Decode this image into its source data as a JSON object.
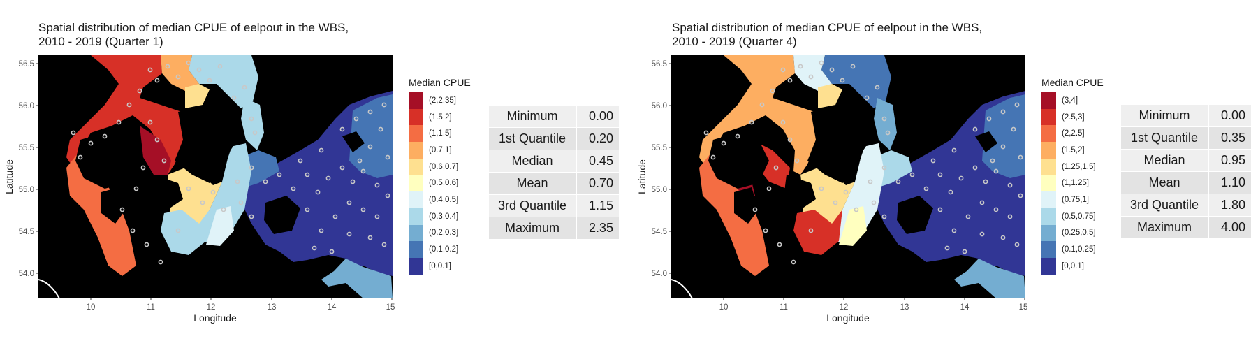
{
  "panels": [
    {
      "id": "q1",
      "title_line1": "Spatial distribution of median CPUE of eelpout in the WBS,",
      "title_line2": "2010 - 2019 (Quarter 1)",
      "xlabel": "Longitude",
      "ylabel": "Latitude",
      "x_ticks": [
        "10",
        "11",
        "12",
        "13",
        "14",
        "15"
      ],
      "y_ticks": [
        "56.5",
        "56.0",
        "55.5",
        "55.0",
        "54.5",
        "54.0"
      ],
      "legend_title": "Median CPUE",
      "legend": [
        {
          "label": "(2,2.35]",
          "color": "#a50f26"
        },
        {
          "label": "(1.5,2]",
          "color": "#d73027"
        },
        {
          "label": "(1,1.5]",
          "color": "#f46d43"
        },
        {
          "label": "(0.7,1]",
          "color": "#fdae61"
        },
        {
          "label": "(0.6,0.7]",
          "color": "#fee090"
        },
        {
          "label": "(0.5,0.6]",
          "color": "#ffffbf"
        },
        {
          "label": "(0.4,0.5]",
          "color": "#e0f3f8"
        },
        {
          "label": "(0.3,0.4]",
          "color": "#abd9e9"
        },
        {
          "label": "(0.2,0.3]",
          "color": "#74add1"
        },
        {
          "label": "(0.1,0.2]",
          "color": "#4575b4"
        },
        {
          "label": "[0,0.1]",
          "color": "#313695"
        }
      ],
      "stats": [
        {
          "name": "Minimum",
          "value": "0.00"
        },
        {
          "name": "1st Quantile",
          "value": "0.20"
        },
        {
          "name": "Median",
          "value": "0.45"
        },
        {
          "name": "Mean",
          "value": "0.70"
        },
        {
          "name": "3rd Quantile",
          "value": "1.15"
        },
        {
          "name": "Maximum",
          "value": "2.35"
        }
      ]
    },
    {
      "id": "q4",
      "title_line1": "Spatial distribution of median CPUE of eelpout in the WBS,",
      "title_line2": "2010 - 2019 (Quarter 4)",
      "xlabel": "Longitude",
      "ylabel": "Latitude",
      "x_ticks": [
        "10",
        "11",
        "12",
        "13",
        "14",
        "15"
      ],
      "y_ticks": [
        "56.5",
        "56.0",
        "55.5",
        "55.0",
        "54.5",
        "54.0"
      ],
      "legend_title": "Median CPUE",
      "legend": [
        {
          "label": "(3,4]",
          "color": "#a50f26"
        },
        {
          "label": "(2.5,3]",
          "color": "#d73027"
        },
        {
          "label": "(2,2.5]",
          "color": "#f46d43"
        },
        {
          "label": "(1.5,2]",
          "color": "#fdae61"
        },
        {
          "label": "(1.25,1.5]",
          "color": "#fee090"
        },
        {
          "label": "(1,1.25]",
          "color": "#ffffbf"
        },
        {
          "label": "(0.75,1]",
          "color": "#e0f3f8"
        },
        {
          "label": "(0.5,0.75]",
          "color": "#abd9e9"
        },
        {
          "label": "(0.25,0.5]",
          "color": "#74add1"
        },
        {
          "label": "(0.1,0.25]",
          "color": "#4575b4"
        },
        {
          "label": "[0,0.1]",
          "color": "#313695"
        }
      ],
      "stats": [
        {
          "name": "Minimum",
          "value": "0.00"
        },
        {
          "name": "1st Quantile",
          "value": "0.35"
        },
        {
          "name": "Median",
          "value": "0.95"
        },
        {
          "name": "Mean",
          "value": "1.10"
        },
        {
          "name": "3rd Quantile",
          "value": "1.80"
        },
        {
          "name": "Maximum",
          "value": "4.00"
        }
      ]
    }
  ],
  "colors": {
    "land": "#000000",
    "station_marker": "#c8c8c8",
    "panel_bg": "#ffffff"
  }
}
